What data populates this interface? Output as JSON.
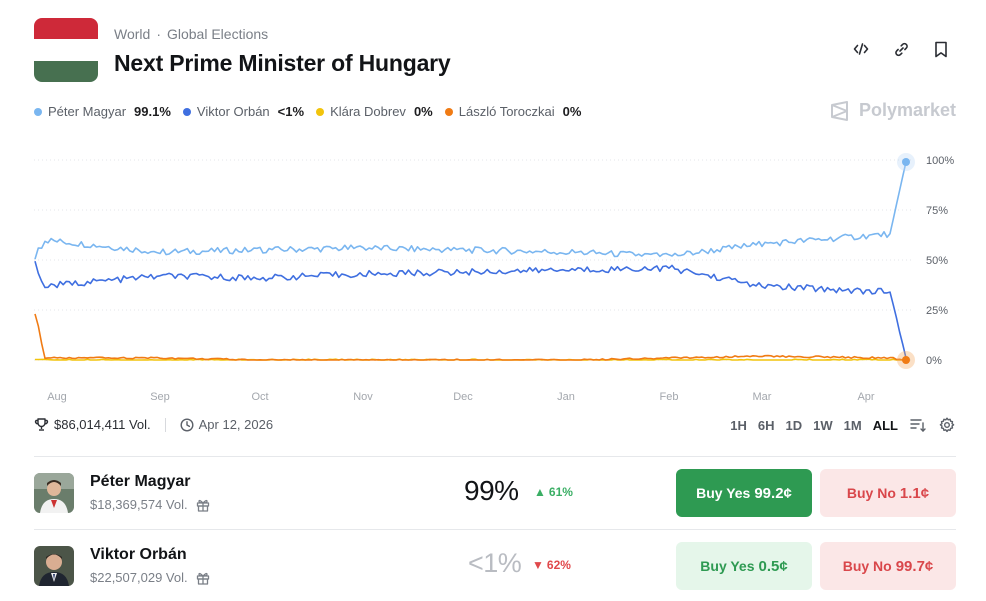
{
  "header": {
    "breadcrumb": [
      "World",
      "Global Elections"
    ],
    "breadcrumb_sep": "·",
    "title": "Next Prime Minister of Hungary",
    "flag_colors": [
      "#ce2939",
      "#ffffff",
      "#477050"
    ],
    "actions": [
      "embed-icon",
      "link-icon",
      "bookmark-icon"
    ]
  },
  "brand": {
    "name": "Polymarket",
    "color": "#c7cad0"
  },
  "legend": [
    {
      "name": "Péter Magyar",
      "value": "99.1%",
      "color": "#7ab6f0"
    },
    {
      "name": "Viktor Orbán",
      "value": "<1%",
      "color": "#3f6fe0"
    },
    {
      "name": "Klára Dobrev",
      "value": "0%",
      "color": "#f2c40c"
    },
    {
      "name": "László Toroczkai",
      "value": "0%",
      "color": "#f07b14"
    }
  ],
  "chart_data": {
    "type": "line",
    "x_ticks": [
      "Aug",
      "Sep",
      "Oct",
      "Nov",
      "Dec",
      "Jan",
      "Feb",
      "Mar",
      "Apr"
    ],
    "y_ticks": [
      "100%",
      "75%",
      "50%",
      "25%",
      "0%"
    ],
    "ylim": [
      0,
      100
    ],
    "grid": true,
    "x": [
      "Aug",
      "Aug",
      "Sep",
      "Oct",
      "Nov",
      "Dec",
      "Jan",
      "Feb",
      "Mar",
      "Apr",
      "Apr"
    ],
    "series": [
      {
        "name": "Péter Magyar",
        "color": "#7ab6f0",
        "values": [
          52,
          60,
          54,
          55,
          56,
          55,
          54,
          52,
          58,
          63,
          99
        ]
      },
      {
        "name": "Viktor Orbán",
        "color": "#3f6fe0",
        "values": [
          48,
          37,
          42,
          41,
          43,
          44,
          45,
          46,
          37,
          34,
          1
        ]
      },
      {
        "name": "Klára Dobrev",
        "color": "#f2c40c",
        "values": [
          0,
          0,
          0,
          0,
          0,
          0,
          0,
          0,
          0,
          0,
          0
        ]
      },
      {
        "name": "László Toroczkai",
        "color": "#f07b14",
        "values": [
          24,
          1,
          1,
          0,
          0,
          0,
          0,
          1,
          2,
          1,
          0
        ]
      }
    ]
  },
  "stats": {
    "volume": "$86,014,411 Vol.",
    "date": "Apr 12, 2026"
  },
  "ranges": [
    "1H",
    "6H",
    "1D",
    "1W",
    "1M",
    "ALL"
  ],
  "active_range": "ALL",
  "outcomes": [
    {
      "name": "Péter Magyar",
      "volume": "$18,369,574 Vol.",
      "probability": "99%",
      "change": "61%",
      "change_dir": "up",
      "yes_label": "Buy Yes",
      "yes_price": "99.2¢",
      "no_label": "Buy No",
      "no_price": "1.1¢"
    },
    {
      "name": "Viktor Orbán",
      "volume": "$22,507,029 Vol.",
      "probability": "<1%",
      "change": "62%",
      "change_dir": "down",
      "yes_label": "Buy Yes",
      "yes_price": "0.5¢",
      "no_label": "Buy No",
      "no_price": "99.7¢"
    }
  ]
}
